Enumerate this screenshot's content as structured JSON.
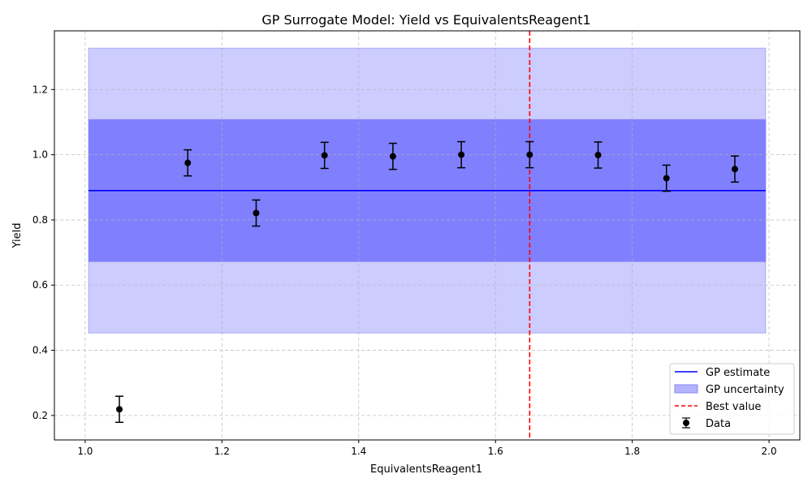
{
  "chart_data": {
    "type": "scatter",
    "title": "GP Surrogate Model: Yield vs EquivalentsReagent1",
    "xlabel": "EquivalentsReagent1",
    "ylabel": "Yield",
    "xlim": [
      0.955,
      2.045
    ],
    "ylim": [
      0.125,
      1.38
    ],
    "grid": true,
    "legend_position": "bottom-right",
    "x_ticks": [
      1.0,
      1.2,
      1.4,
      1.6,
      1.8,
      2.0
    ],
    "x_tick_labels": [
      "1.0",
      "1.2",
      "1.4",
      "1.6",
      "1.8",
      "2.0"
    ],
    "y_ticks": [
      0.2,
      0.4,
      0.6,
      0.8,
      1.0,
      1.2
    ],
    "y_tick_labels": [
      "0.2",
      "0.4",
      "0.6",
      "0.8",
      "1.0",
      "1.2"
    ],
    "gp_estimate": {
      "name": "GP estimate",
      "x": [
        1.005,
        1.995
      ],
      "y": [
        0.89,
        0.89
      ],
      "color": "#0000ff"
    },
    "gp_uncertainty": {
      "name": "GP uncertainty",
      "x": [
        1.005,
        1.995
      ],
      "bands": [
        {
          "lower": 0.672,
          "upper": 1.108,
          "color": "#8080ff"
        },
        {
          "lower": 0.453,
          "upper": 1.327,
          "color": "#ccccff"
        }
      ],
      "legend_color": "#b3b3ff"
    },
    "best_value": {
      "name": "Best value",
      "x": 1.65,
      "color": "#ff0000"
    },
    "data_series": {
      "name": "Data",
      "color": "#000000",
      "x": [
        1.05,
        1.15,
        1.25,
        1.35,
        1.45,
        1.55,
        1.65,
        1.75,
        1.85,
        1.95
      ],
      "y": [
        0.219,
        0.975,
        0.821,
        0.998,
        0.995,
        1.0,
        1.0,
        0.999,
        0.928,
        0.956
      ],
      "error": [
        0.04,
        0.04,
        0.04,
        0.04,
        0.04,
        0.04,
        0.04,
        0.04,
        0.04,
        0.04
      ]
    }
  }
}
